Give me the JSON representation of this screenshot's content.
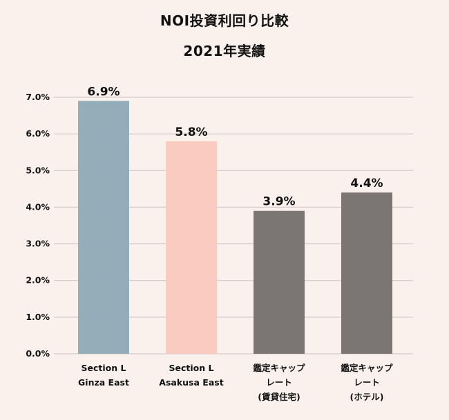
{
  "chart_data": {
    "type": "bar",
    "title": "NOI投資利回り比較",
    "subtitle": "2021年実績",
    "categories": [
      [
        "Section L",
        "Ginza East"
      ],
      [
        "Section L",
        "Asakusa East"
      ],
      [
        "鑑定キャップ",
        "レート",
        "(賃貸住宅)"
      ],
      [
        "鑑定キャップ",
        "レート",
        "(ホテル)"
      ]
    ],
    "values": [
      6.9,
      5.8,
      3.9,
      4.4
    ],
    "value_labels": [
      "6.9%",
      "5.8%",
      "3.9%",
      "4.4%"
    ],
    "colors": [
      "#93aeb9",
      "#f9cbc1",
      "#7b7674",
      "#7b7674"
    ],
    "yticks": [
      "0.0%",
      "1.0%",
      "2.0%",
      "3.0%",
      "4.0%",
      "5.0%",
      "6.0%",
      "7.0%"
    ],
    "ylim": [
      0,
      7
    ],
    "grid": true,
    "grid_color": "#c9c4c2"
  }
}
